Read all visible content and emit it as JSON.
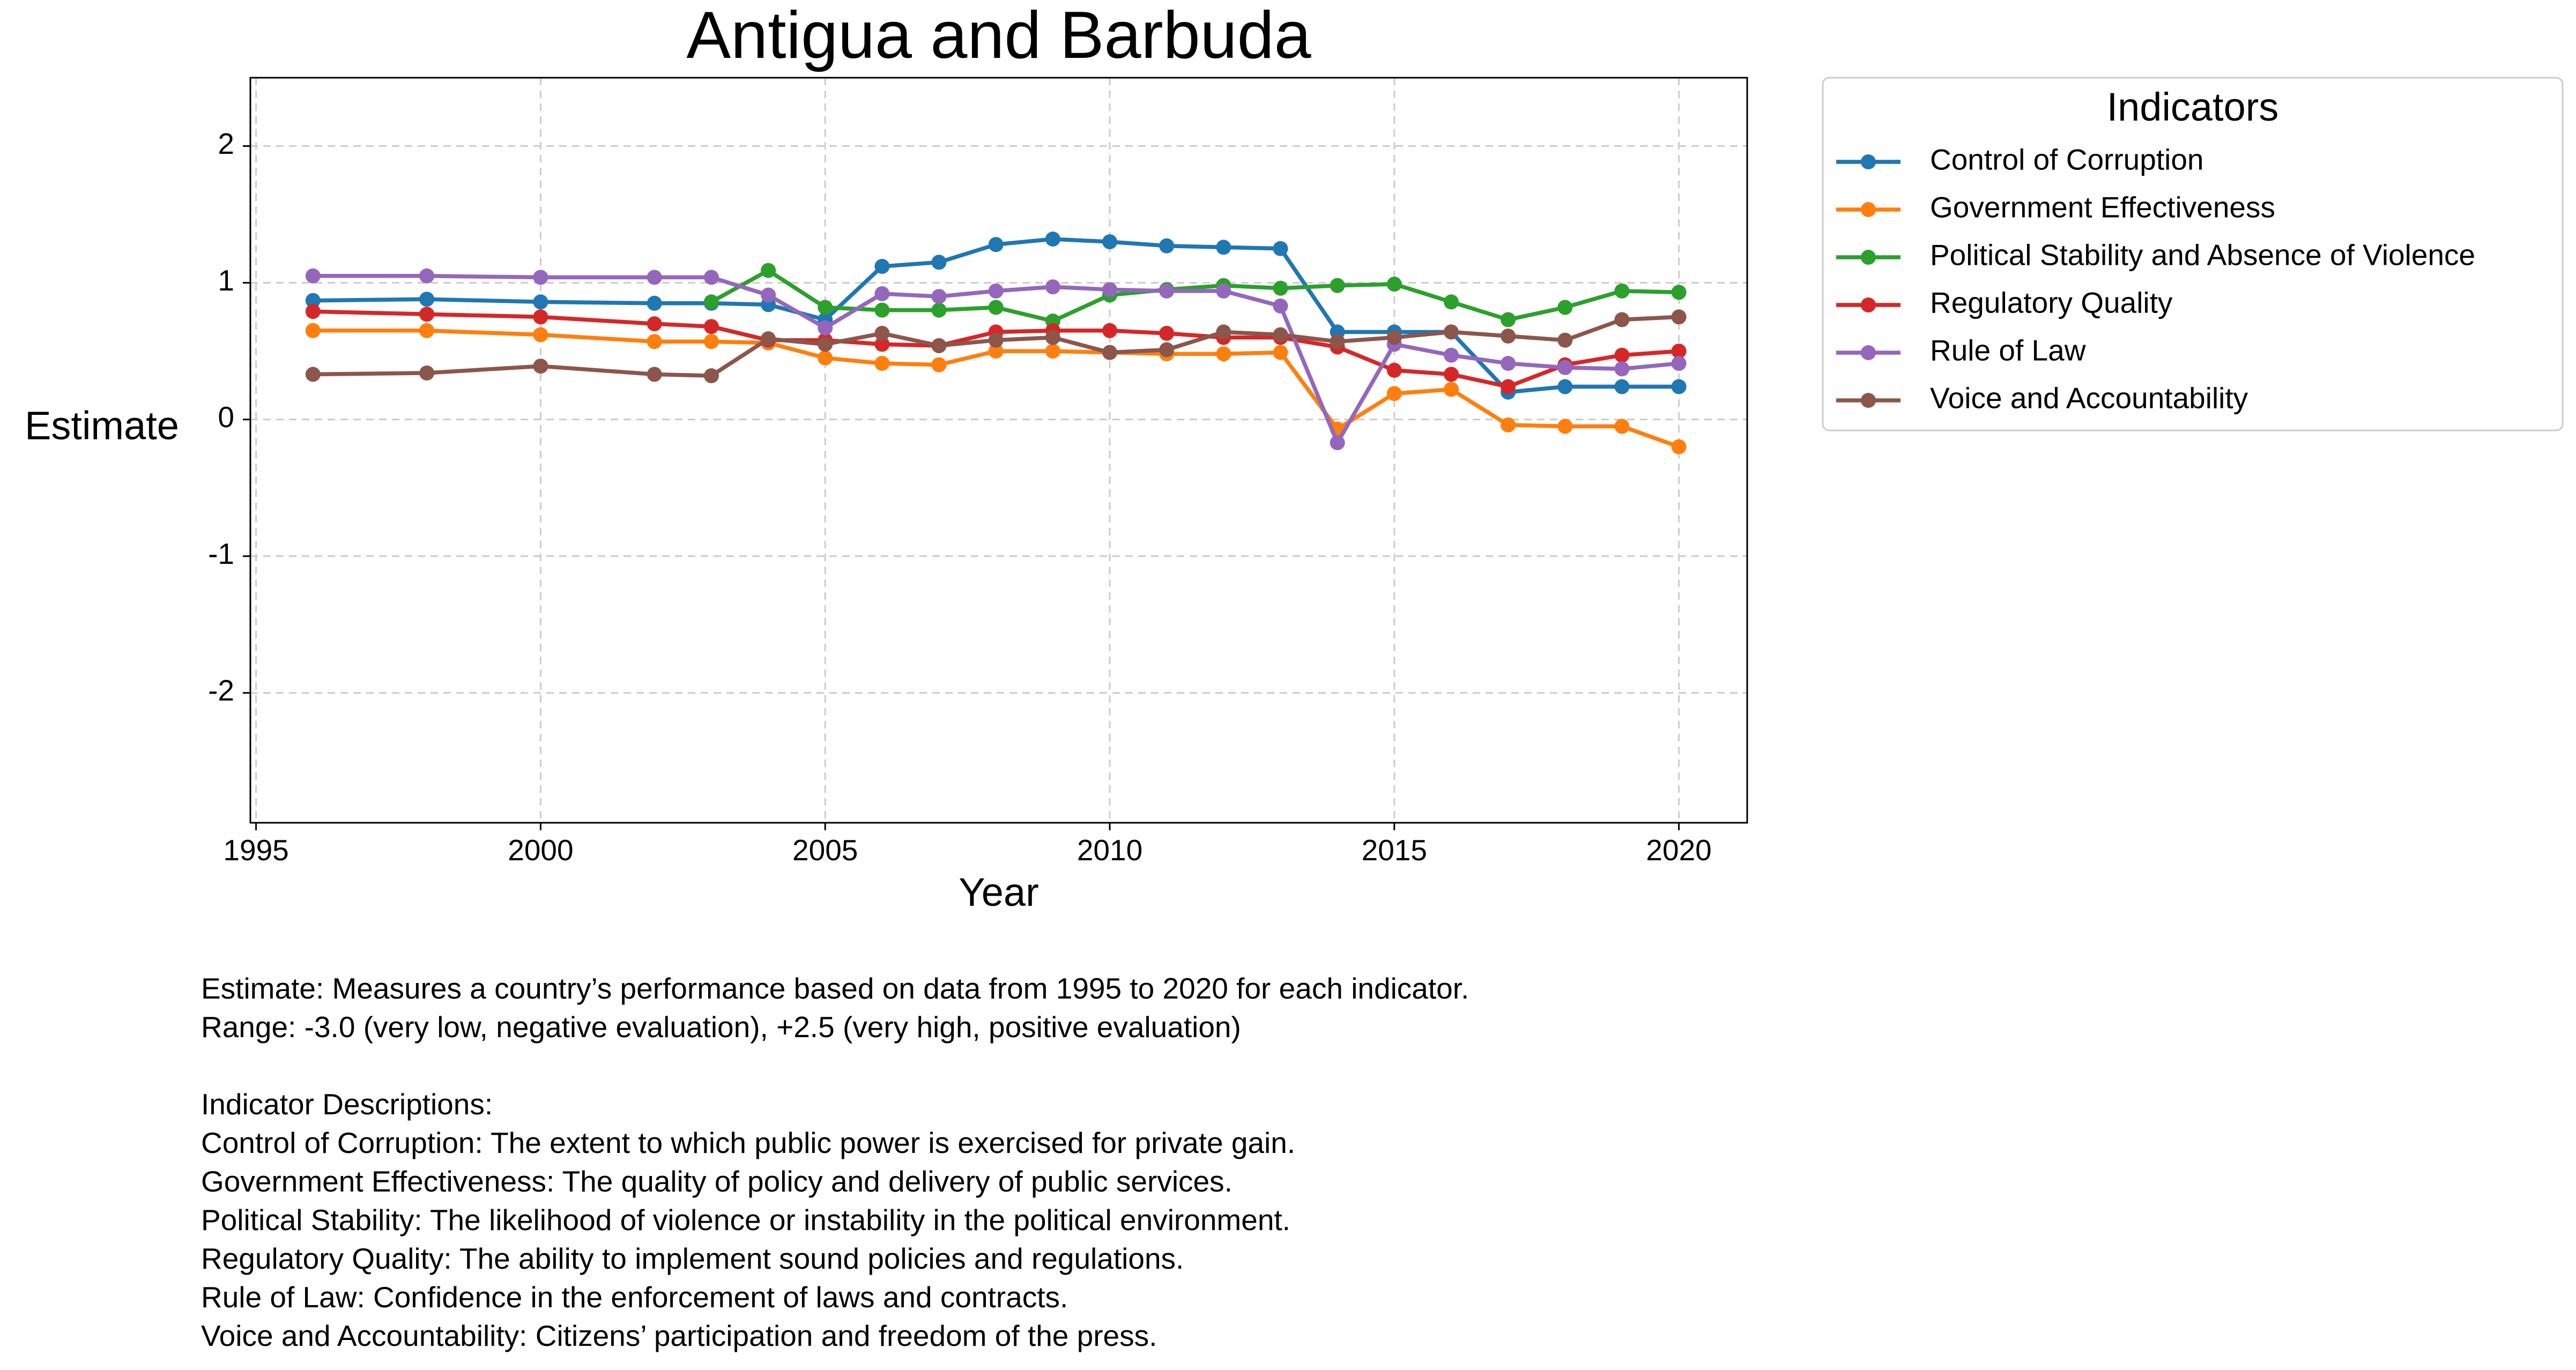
{
  "chart_data": {
    "type": "line",
    "title": "Antigua and Barbuda",
    "xlabel": "Year",
    "ylabel": "Estimate",
    "xlim": [
      1994.9,
      2021.2
    ],
    "ylim": [
      -2.95,
      2.5
    ],
    "xticks": [
      "1995",
      "2000",
      "2005",
      "2010",
      "2015",
      "2020"
    ],
    "yticks": [
      "2",
      "1",
      "0",
      "-1",
      "-2"
    ],
    "grid": true,
    "legend": {
      "title": "Indicators",
      "placement": "outside-right-top"
    },
    "x": [
      1996,
      1998,
      2000,
      2002,
      2003,
      2004,
      2005,
      2006,
      2007,
      2008,
      2009,
      2010,
      2011,
      2012,
      2013,
      2014,
      2015,
      2016,
      2017,
      2018,
      2019,
      2020
    ],
    "series": [
      {
        "name": "Control of Corruption",
        "color": "#1f77b4",
        "values": [
          0.87,
          0.88,
          0.86,
          0.85,
          0.85,
          0.84,
          0.73,
          1.12,
          1.15,
          1.28,
          1.32,
          1.3,
          1.27,
          1.26,
          1.25,
          0.64,
          0.64,
          0.64,
          0.2,
          0.24,
          0.24,
          0.24
        ]
      },
      {
        "name": "Government Effectiveness",
        "color": "#ff7f0e",
        "values": [
          0.65,
          0.65,
          0.62,
          0.57,
          0.57,
          0.56,
          0.45,
          0.41,
          0.4,
          0.5,
          0.5,
          0.49,
          0.48,
          0.48,
          0.49,
          -0.07,
          0.19,
          0.22,
          -0.04,
          -0.05,
          -0.05,
          -0.2
        ]
      },
      {
        "name": "Political Stability and Absence of Violence",
        "color": "#2ca02c",
        "values": [
          null,
          null,
          null,
          null,
          0.86,
          1.09,
          0.82,
          0.8,
          0.8,
          0.82,
          0.72,
          0.91,
          0.95,
          0.98,
          0.96,
          0.98,
          0.99,
          0.86,
          0.73,
          0.82,
          0.94,
          0.93
        ]
      },
      {
        "name": "Regulatory Quality",
        "color": "#d62728",
        "values": [
          0.79,
          0.77,
          0.75,
          0.7,
          0.68,
          0.58,
          0.58,
          0.55,
          0.54,
          0.64,
          0.65,
          0.65,
          0.63,
          0.6,
          0.6,
          0.53,
          0.36,
          0.33,
          0.24,
          0.4,
          0.47,
          0.5
        ]
      },
      {
        "name": "Rule of Law",
        "color": "#9467bd",
        "values": [
          1.05,
          1.05,
          1.04,
          1.04,
          1.04,
          0.91,
          0.67,
          0.92,
          0.9,
          0.94,
          0.97,
          0.95,
          0.94,
          0.94,
          0.83,
          -0.17,
          0.55,
          0.47,
          0.41,
          0.38,
          0.37,
          0.41
        ]
      },
      {
        "name": "Voice and Accountability",
        "color": "#8c564b",
        "values": [
          0.33,
          0.34,
          0.39,
          0.33,
          0.32,
          0.59,
          0.55,
          0.63,
          0.54,
          0.58,
          0.6,
          0.49,
          0.51,
          0.64,
          0.62,
          0.57,
          0.6,
          0.64,
          0.61,
          0.58,
          0.73,
          0.75
        ]
      }
    ]
  },
  "notes": {
    "estimate": "Estimate: Measures a country’s performance based on data from 1995 to 2020 for each indicator.",
    "range": "Range: -3.0 (very low, negative evaluation), +2.5 (very high, positive evaluation)",
    "descriptions_header": "Indicator Descriptions:",
    "corruption": "Control of Corruption: The extent to which public power is exercised for private gain.",
    "effectiveness": "Government Effectiveness: The quality of policy and delivery of public services.",
    "stability": "Political Stability: The likelihood of violence or instability in the political environment.",
    "regulatory": "Regulatory Quality: The ability to implement sound policies and regulations.",
    "rule_of_law": "Rule of Law: Confidence in the enforcement of laws and contracts.",
    "voice": "Voice and Accountability: Citizens’ participation and freedom of the press."
  }
}
